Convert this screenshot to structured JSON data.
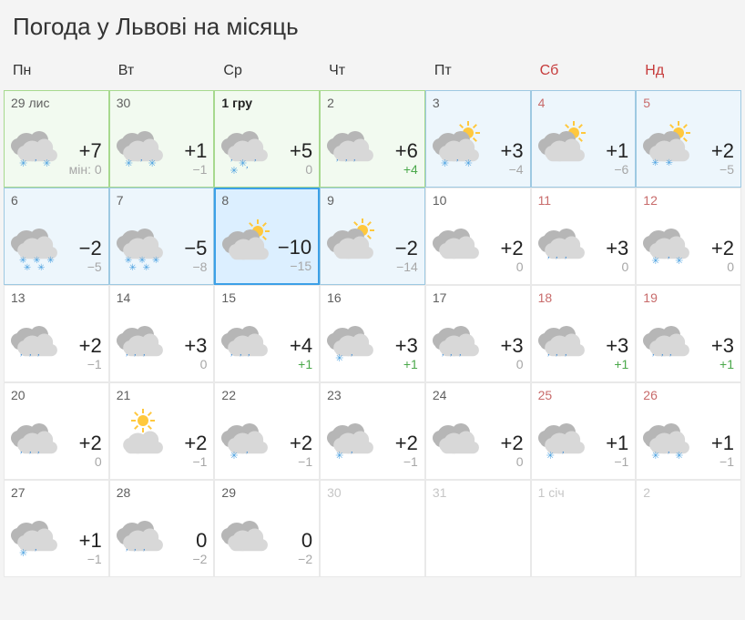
{
  "title": "Погода у Львові на місяць",
  "weekday_color": "#333333",
  "weekend_color": "#c63b3b",
  "weekdays": [
    "Пн",
    "Вт",
    "Ср",
    "Чт",
    "Пт",
    "Сб",
    "Нд"
  ],
  "days": [
    {
      "label": "29 лис",
      "bold": false,
      "hi": "+7",
      "lo": "мін: 0",
      "lo_plus": false,
      "icon": "sleet",
      "bg": "green",
      "weekend": false,
      "faded": false
    },
    {
      "label": "30",
      "bold": false,
      "hi": "+1",
      "lo": "−1",
      "lo_plus": false,
      "icon": "sleet",
      "bg": "green",
      "weekend": false,
      "faded": false
    },
    {
      "label": "1 гру",
      "bold": true,
      "hi": "+5",
      "lo": "0",
      "lo_plus": false,
      "icon": "sleet-heavy",
      "bg": "green",
      "weekend": false,
      "faded": false
    },
    {
      "label": "2",
      "bold": false,
      "hi": "+6",
      "lo": "+4",
      "lo_plus": true,
      "icon": "rain",
      "bg": "green",
      "weekend": false,
      "faded": false
    },
    {
      "label": "3",
      "bold": false,
      "hi": "+3",
      "lo": "−4",
      "lo_plus": false,
      "icon": "partly-sleet",
      "bg": "blue",
      "weekend": false,
      "faded": false
    },
    {
      "label": "4",
      "bold": false,
      "hi": "+1",
      "lo": "−6",
      "lo_plus": false,
      "icon": "partly-cloudy",
      "bg": "blue",
      "weekend": true,
      "faded": false
    },
    {
      "label": "5",
      "bold": false,
      "hi": "+2",
      "lo": "−5",
      "lo_plus": false,
      "icon": "partly-snow",
      "bg": "blue",
      "weekend": true,
      "faded": false
    },
    {
      "label": "6",
      "bold": false,
      "hi": "−2",
      "lo": "−5",
      "lo_plus": false,
      "icon": "snow-heavy",
      "bg": "blue",
      "weekend": false,
      "faded": false
    },
    {
      "label": "7",
      "bold": false,
      "hi": "−5",
      "lo": "−8",
      "lo_plus": false,
      "icon": "snow-heavy",
      "bg": "blue",
      "weekend": false,
      "faded": false
    },
    {
      "label": "8",
      "bold": false,
      "hi": "−10",
      "lo": "−15",
      "lo_plus": false,
      "icon": "partly-cloudy",
      "bg": "today",
      "weekend": false,
      "faded": false
    },
    {
      "label": "9",
      "bold": false,
      "hi": "−2",
      "lo": "−14",
      "lo_plus": false,
      "icon": "partly-cloudy",
      "bg": "blue",
      "weekend": false,
      "faded": false
    },
    {
      "label": "10",
      "bold": false,
      "hi": "+2",
      "lo": "0",
      "lo_plus": false,
      "icon": "cloudy",
      "bg": "white",
      "weekend": false,
      "faded": false
    },
    {
      "label": "11",
      "bold": false,
      "hi": "+3",
      "lo": "0",
      "lo_plus": false,
      "icon": "rain",
      "bg": "white",
      "weekend": true,
      "faded": false
    },
    {
      "label": "12",
      "bold": false,
      "hi": "+2",
      "lo": "0",
      "lo_plus": false,
      "icon": "sleet",
      "bg": "white",
      "weekend": true,
      "faded": false
    },
    {
      "label": "13",
      "bold": false,
      "hi": "+2",
      "lo": "−1",
      "lo_plus": false,
      "icon": "rain",
      "bg": "white",
      "weekend": false,
      "faded": false
    },
    {
      "label": "14",
      "bold": false,
      "hi": "+3",
      "lo": "0",
      "lo_plus": false,
      "icon": "rain",
      "bg": "white",
      "weekend": false,
      "faded": false
    },
    {
      "label": "15",
      "bold": false,
      "hi": "+4",
      "lo": "+1",
      "lo_plus": true,
      "icon": "rain",
      "bg": "white",
      "weekend": false,
      "faded": false
    },
    {
      "label": "16",
      "bold": false,
      "hi": "+3",
      "lo": "+1",
      "lo_plus": true,
      "icon": "sleet-light",
      "bg": "white",
      "weekend": false,
      "faded": false
    },
    {
      "label": "17",
      "bold": false,
      "hi": "+3",
      "lo": "0",
      "lo_plus": false,
      "icon": "rain",
      "bg": "white",
      "weekend": false,
      "faded": false
    },
    {
      "label": "18",
      "bold": false,
      "hi": "+3",
      "lo": "+1",
      "lo_plus": true,
      "icon": "rain",
      "bg": "white",
      "weekend": true,
      "faded": false
    },
    {
      "label": "19",
      "bold": false,
      "hi": "+3",
      "lo": "+1",
      "lo_plus": true,
      "icon": "rain",
      "bg": "white",
      "weekend": true,
      "faded": false
    },
    {
      "label": "20",
      "bold": false,
      "hi": "+2",
      "lo": "0",
      "lo_plus": false,
      "icon": "rain",
      "bg": "white",
      "weekend": false,
      "faded": false
    },
    {
      "label": "21",
      "bold": false,
      "hi": "+2",
      "lo": "−1",
      "lo_plus": false,
      "icon": "sunny-cloud",
      "bg": "white",
      "weekend": false,
      "faded": false
    },
    {
      "label": "22",
      "bold": false,
      "hi": "+2",
      "lo": "−1",
      "lo_plus": false,
      "icon": "sleet-light",
      "bg": "white",
      "weekend": false,
      "faded": false
    },
    {
      "label": "23",
      "bold": false,
      "hi": "+2",
      "lo": "−1",
      "lo_plus": false,
      "icon": "sleet-light",
      "bg": "white",
      "weekend": false,
      "faded": false
    },
    {
      "label": "24",
      "bold": false,
      "hi": "+2",
      "lo": "0",
      "lo_plus": false,
      "icon": "cloudy",
      "bg": "white",
      "weekend": false,
      "faded": false
    },
    {
      "label": "25",
      "bold": false,
      "hi": "+1",
      "lo": "−1",
      "lo_plus": false,
      "icon": "sleet-light",
      "bg": "white",
      "weekend": true,
      "faded": false
    },
    {
      "label": "26",
      "bold": false,
      "hi": "+1",
      "lo": "−1",
      "lo_plus": false,
      "icon": "sleet",
      "bg": "white",
      "weekend": true,
      "faded": false
    },
    {
      "label": "27",
      "bold": false,
      "hi": "+1",
      "lo": "−1",
      "lo_plus": false,
      "icon": "sleet-light",
      "bg": "white",
      "weekend": false,
      "faded": false
    },
    {
      "label": "28",
      "bold": false,
      "hi": "0",
      "lo": "−2",
      "lo_plus": false,
      "icon": "rain",
      "bg": "white",
      "weekend": false,
      "faded": false
    },
    {
      "label": "29",
      "bold": false,
      "hi": "0",
      "lo": "−2",
      "lo_plus": false,
      "icon": "cloudy",
      "bg": "white",
      "weekend": false,
      "faded": false
    },
    {
      "label": "30",
      "bold": false,
      "hi": "",
      "lo": "",
      "lo_plus": false,
      "icon": "none",
      "bg": "white",
      "weekend": false,
      "faded": true
    },
    {
      "label": "31",
      "bold": false,
      "hi": "",
      "lo": "",
      "lo_plus": false,
      "icon": "none",
      "bg": "white",
      "weekend": false,
      "faded": true
    },
    {
      "label": "1 січ",
      "bold": false,
      "hi": "",
      "lo": "",
      "lo_plus": false,
      "icon": "none",
      "bg": "white",
      "weekend": true,
      "faded": true
    },
    {
      "label": "2",
      "bold": false,
      "hi": "",
      "lo": "",
      "lo_plus": false,
      "icon": "none",
      "bg": "white",
      "weekend": true,
      "faded": true
    }
  ],
  "colors": {
    "bg_page": "#f4f4f4",
    "cell_white": "#ffffff",
    "cell_green": "#f2faf0",
    "cell_blue": "#edf6fc",
    "cell_today": "#dcefff",
    "border_default": "#e9e9e9",
    "border_green": "#a7d98e",
    "border_blue": "#9ec9e2",
    "border_today": "#3ca0e7",
    "hi_text": "#222222",
    "lo_text": "#a7a7a7",
    "lo_plus_text": "#4aa84a",
    "faded_text": "#c6c6c6",
    "cloud_back": "#b6b6b6",
    "cloud_front": "#d8d8d8",
    "sun": "#ffc83d",
    "rain": "#3b8bd6",
    "snow": "#4aa0e0"
  }
}
